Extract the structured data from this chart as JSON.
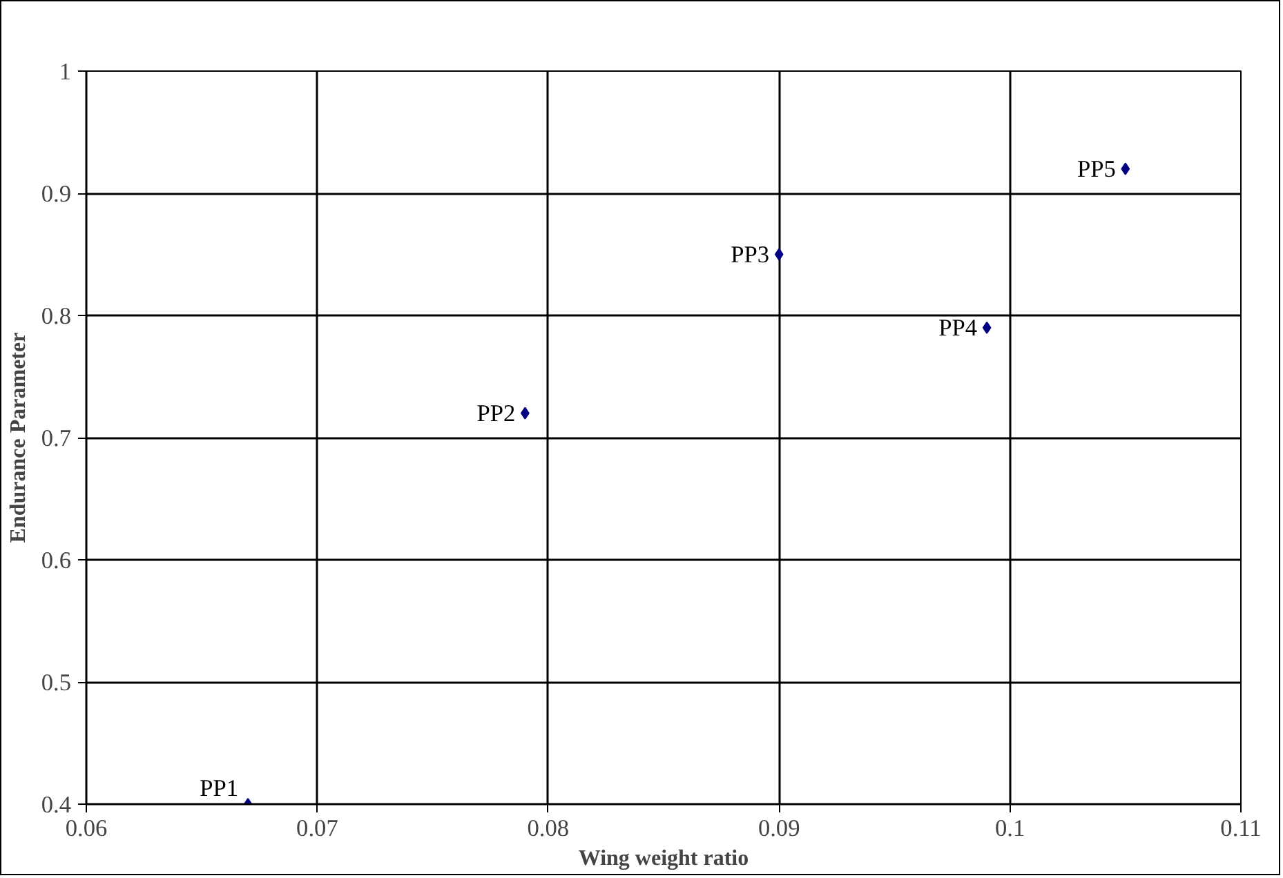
{
  "chart_data": {
    "type": "scatter",
    "xlabel": "Wing weight ratio",
    "ylabel": "Endurance Parameter",
    "x": [
      0.067,
      0.079,
      0.09,
      0.099,
      0.105
    ],
    "series": [
      {
        "color": "#000080",
        "values": [
          0.4,
          0.72,
          0.85,
          0.79,
          0.92
        ]
      }
    ],
    "annotations": [
      {
        "text": "PP1",
        "x": 0.067,
        "y": 0.4
      },
      {
        "text": "PP2",
        "x": 0.079,
        "y": 0.72
      },
      {
        "text": "PP3",
        "x": 0.09,
        "y": 0.85
      },
      {
        "text": "PP4",
        "x": 0.099,
        "y": 0.79
      },
      {
        "text": "PP5",
        "x": 0.105,
        "y": 0.92
      }
    ],
    "xlim": [
      0.06,
      0.11
    ],
    "ylim": [
      0.4,
      1
    ],
    "xticks": [
      0.06,
      0.07,
      0.08,
      0.09,
      {
        "value": 0.1,
        "label": "0.1"
      },
      0.11
    ],
    "yticks": [
      0.4,
      0.5,
      0.6,
      0.7,
      0.8,
      0.9,
      1
    ],
    "grid": true,
    "marker": "diamond"
  }
}
